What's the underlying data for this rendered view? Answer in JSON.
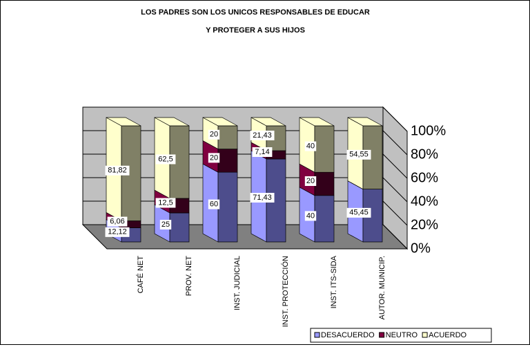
{
  "chart_data": {
    "type": "bar3d_stacked_percent",
    "title": [
      "LOS PADRES SON LOS UNICOS RESPONSABLES DE EDUCAR",
      "Y PROTEGER A SUS HIJOS"
    ],
    "categories": [
      "CAFÉ NET",
      "PROV. NET",
      "INST. JUDICIAL",
      "INST. PROTECCIÓN",
      "INST. ITS-SIDA",
      "AUTOR. MUNICIP."
    ],
    "series": [
      {
        "name": "DESACUERDO",
        "color": "#9999ff",
        "shade": "#4d4d8c",
        "values": [
          12.12,
          25,
          60,
          71.43,
          40,
          45.45
        ],
        "value_labels": [
          "12,12",
          "25",
          "60",
          "71,43",
          "40",
          "45,45"
        ]
      },
      {
        "name": "NEUTRO",
        "color": "#800040",
        "shade": "#33001a",
        "values": [
          6.06,
          12.5,
          20,
          7.14,
          20,
          0
        ],
        "value_labels": [
          "6,06",
          "12,5",
          "20",
          "7,14",
          "20",
          null
        ]
      },
      {
        "name": "ACUERDO",
        "color": "#ffffcc",
        "shade": "#808066",
        "values": [
          81.82,
          62.5,
          20,
          21.43,
          40,
          54.55
        ],
        "value_labels": [
          "81,82",
          "62,5",
          "20",
          "21,43",
          "40",
          "54,55"
        ]
      }
    ],
    "ylim": [
      0,
      100
    ],
    "yticks": [
      {
        "value": 0,
        "label": "0%"
      },
      {
        "value": 20,
        "label": "20%"
      },
      {
        "value": 40,
        "label": "40%"
      },
      {
        "value": 60,
        "label": "60%"
      },
      {
        "value": 80,
        "label": "80%"
      },
      {
        "value": 100,
        "label": "100%"
      }
    ],
    "grid": true,
    "legend": "bottom-right"
  }
}
